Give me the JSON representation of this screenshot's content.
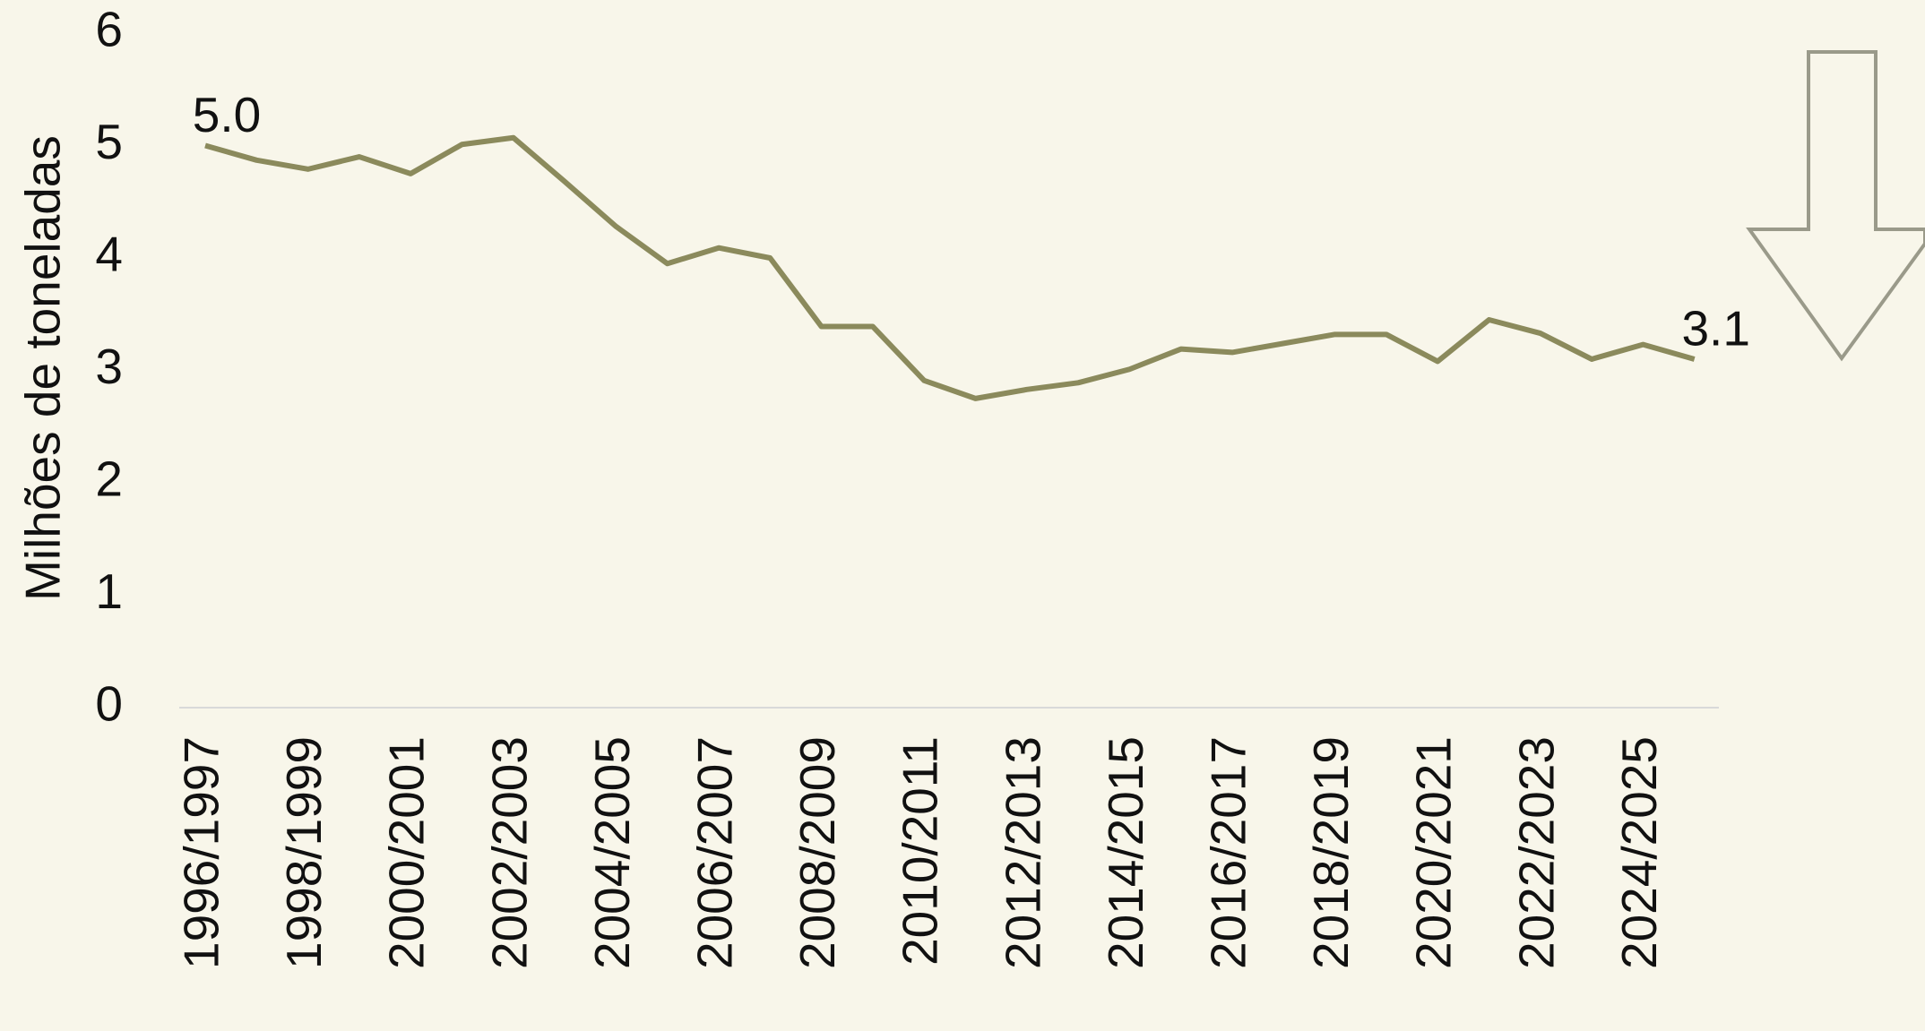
{
  "chart_data": {
    "type": "line",
    "y_label": "Milhões de toneladas",
    "categories": [
      "1996/1997",
      null,
      "1998/1999",
      null,
      "2000/2001",
      null,
      "2002/2003",
      null,
      "2004/2005",
      null,
      "2006/2007",
      null,
      "2008/2009",
      null,
      "2010/2011",
      null,
      "2012/2013",
      null,
      "2014/2015",
      null,
      "2016/2017",
      null,
      "2018/2019",
      null,
      "2020/2021",
      null,
      "2022/2023",
      null,
      "2024/2025",
      null
    ],
    "values": [
      5.0,
      4.87,
      4.79,
      4.9,
      4.75,
      5.01,
      5.07,
      4.68,
      4.28,
      3.95,
      4.09,
      4.0,
      3.39,
      3.39,
      2.91,
      2.75,
      2.83,
      2.89,
      3.01,
      3.19,
      3.16,
      3.24,
      3.32,
      3.32,
      3.08,
      3.45,
      3.33,
      3.1,
      3.23,
      3.1
    ],
    "value_labels": [
      "5.0",
      null,
      null,
      null,
      null,
      null,
      null,
      null,
      null,
      null,
      null,
      null,
      null,
      null,
      null,
      null,
      null,
      null,
      null,
      null,
      null,
      null,
      null,
      null,
      null,
      null,
      null,
      null,
      null,
      "3.1"
    ],
    "color": "#8b8a5c",
    "ylim": [
      0,
      6
    ],
    "yticks": [
      0,
      1,
      2,
      3,
      4,
      5,
      6
    ],
    "grid": false
  }
}
